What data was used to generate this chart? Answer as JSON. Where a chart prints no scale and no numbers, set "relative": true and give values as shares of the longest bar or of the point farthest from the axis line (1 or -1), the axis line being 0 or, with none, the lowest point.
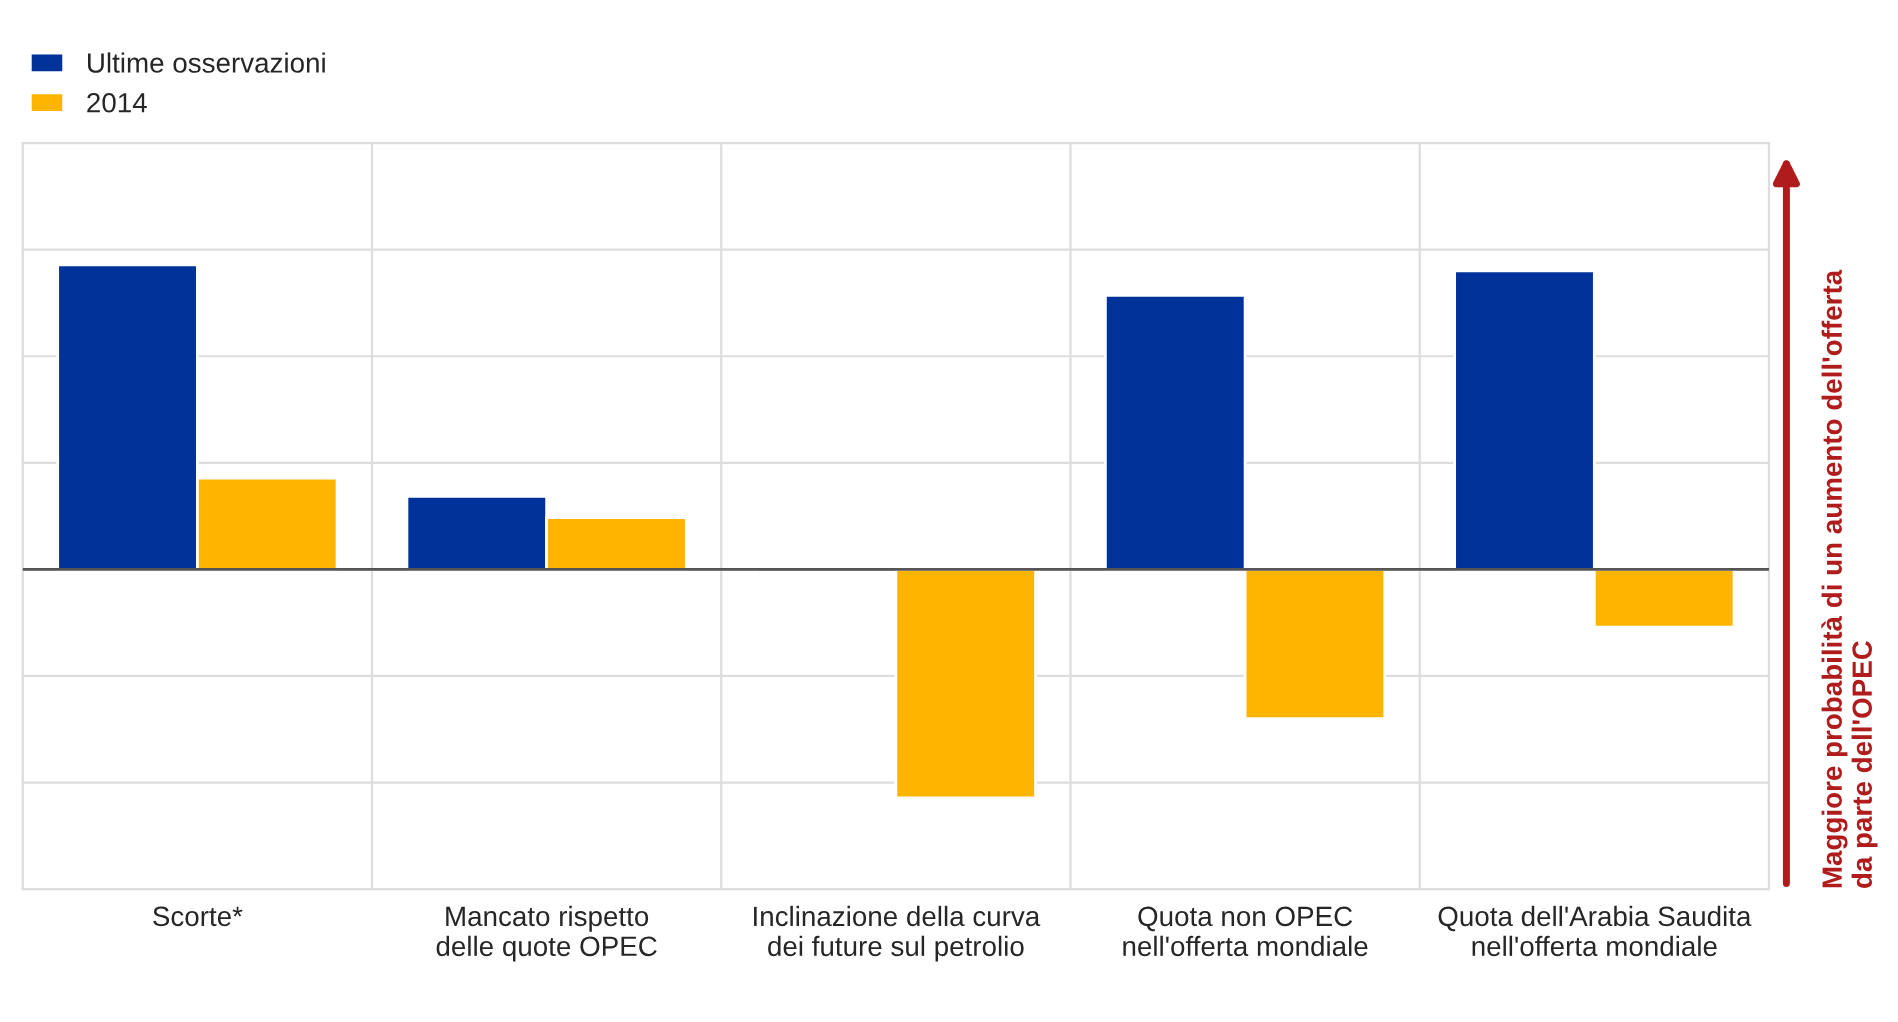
{
  "chart_data": {
    "type": "bar",
    "relative": true,
    "grid": true,
    "legend": "top left",
    "categories": [
      "Scorte*",
      "Mancato rispetto\ndelle quote OPEC",
      "Inclinazione della curva\ndei future sul petrolio",
      "Quota non OPEC\nnell'offerta mondiale",
      "Quota dell'Arabia Saudita\nnell'offerta mondiale"
    ],
    "series": [
      {
        "name": "Ultime osservazioni",
        "color": "#003299",
        "values": [
          1,
          0.24,
          -0.01,
          0.9,
          0.98
        ]
      },
      {
        "name": "2014",
        "color": "#ffb400",
        "values": [
          0.3,
          0.17,
          -0.75,
          -0.49,
          -0.19
        ]
      }
    ],
    "annotations": [
      "Maggiore probabilità di un aumento dell'offerta\nda parte dell'OPEC"
    ]
  }
}
